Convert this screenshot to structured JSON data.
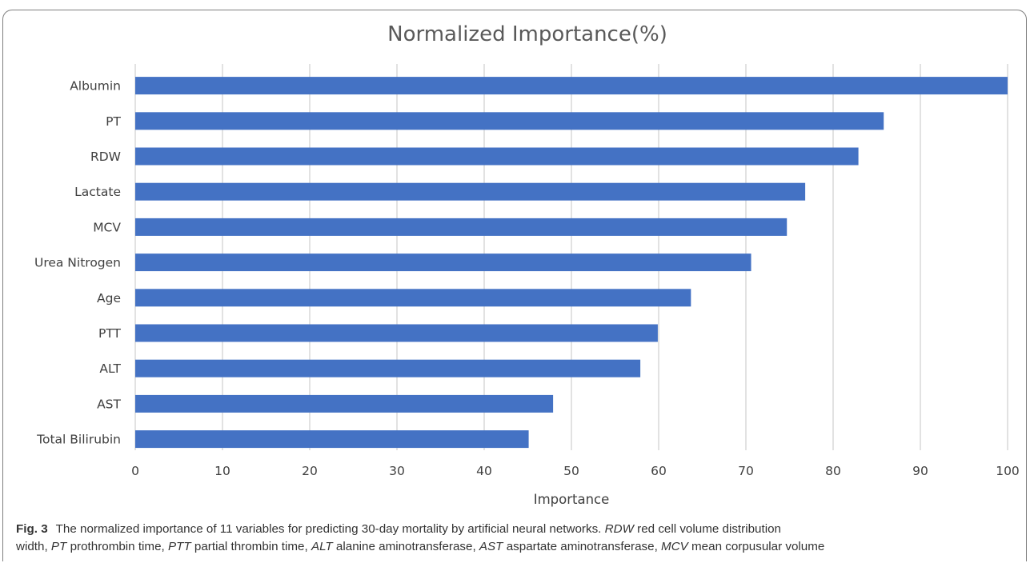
{
  "chart_data": {
    "type": "bar",
    "orientation": "horizontal",
    "title": "Normalized Importance(%)",
    "xlabel": "Importance",
    "ylabel": "",
    "xlim": [
      0,
      100
    ],
    "ticks": [
      "0",
      "10",
      "20",
      "30",
      "40",
      "50",
      "60",
      "70",
      "80",
      "90",
      "100"
    ],
    "grid": "vertical",
    "bar_color": "#4472c4",
    "categories": [
      "Albumin",
      "PT",
      "RDW",
      "Lactate",
      "MCV",
      "Urea Nitrogen",
      "Age",
      "PTT",
      "ALT",
      "AST",
      "Total Bilirubin"
    ],
    "values": [
      100,
      85.8,
      82.9,
      76.8,
      74.7,
      70.6,
      63.7,
      59.9,
      57.9,
      47.9,
      45.1
    ]
  },
  "caption": {
    "fig_label": "Fig. 3",
    "text_1": "The normalized importance of 11 variables for predicting 30-day mortality by artificial neural networks.",
    "abbr_rdw": "RDW",
    "def_rdw": "red cell volume distribution",
    "def_rdw_2": "width,",
    "abbr_pt": "PT",
    "def_pt": "prothrombin time,",
    "abbr_ptt": "PTT",
    "def_ptt": "partial thrombin time,",
    "abbr_alt": "ALT",
    "def_alt": "alanine aminotransferase,",
    "abbr_ast": "AST",
    "def_ast": "aspartate aminotransferase,",
    "abbr_mcv": "MCV",
    "def_mcv": "mean corpusular volume"
  }
}
